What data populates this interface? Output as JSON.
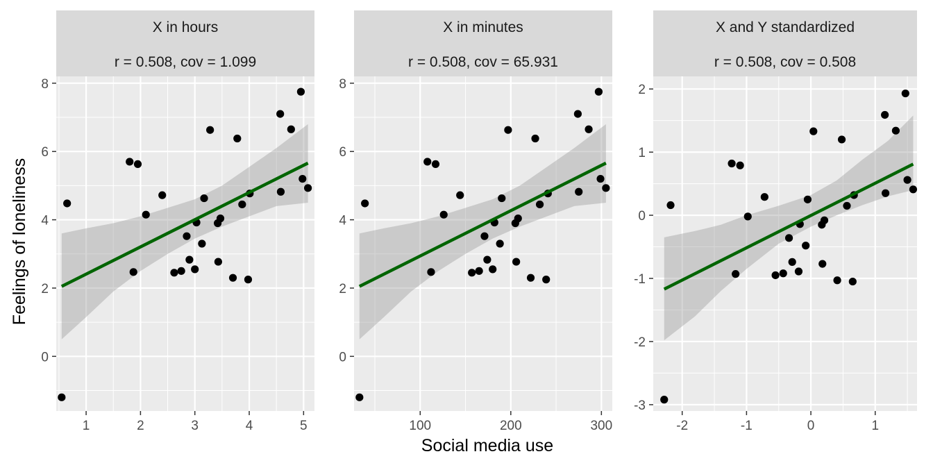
{
  "figure": {
    "xlabel": "Social media use",
    "ylabel": "Feelings of loneliness"
  },
  "colors": {
    "panel_bg": "#ebebeb",
    "strip_bg": "#d9d9d9",
    "grid": "#ffffff",
    "point": "#000000",
    "line": "#006400",
    "band": "#999999",
    "tick_text": "#4d4d4d"
  },
  "chart_data": [
    {
      "type": "scatter",
      "title": "X in hours",
      "subtitle": "r = 0.508, cov = 1.099",
      "xlim": [
        0.45,
        5.2
      ],
      "ylim": [
        -1.6,
        8.2
      ],
      "xticks": [
        1,
        2,
        3,
        4,
        5
      ],
      "xtick_labels": [
        "1",
        "2",
        "3",
        "4",
        "5"
      ],
      "yticks": [
        0,
        2,
        4,
        6,
        8
      ],
      "ytick_labels": [
        "0",
        "2",
        "4",
        "6",
        "8"
      ],
      "points": [
        [
          0.55,
          -1.2
        ],
        [
          0.65,
          4.48
        ],
        [
          1.8,
          5.7
        ],
        [
          1.87,
          2.47
        ],
        [
          1.95,
          5.63
        ],
        [
          2.1,
          4.15
        ],
        [
          2.4,
          4.72
        ],
        [
          2.62,
          2.45
        ],
        [
          2.75,
          2.5
        ],
        [
          2.85,
          3.52
        ],
        [
          2.9,
          2.83
        ],
        [
          3.0,
          2.55
        ],
        [
          3.03,
          3.92
        ],
        [
          3.13,
          3.3
        ],
        [
          3.17,
          4.63
        ],
        [
          3.28,
          6.63
        ],
        [
          3.42,
          3.9
        ],
        [
          3.43,
          2.77
        ],
        [
          3.47,
          4.04
        ],
        [
          3.7,
          2.3
        ],
        [
          3.78,
          6.38
        ],
        [
          3.87,
          4.45
        ],
        [
          3.98,
          2.25
        ],
        [
          4.01,
          4.77
        ],
        [
          4.57,
          7.1
        ],
        [
          4.58,
          4.82
        ],
        [
          4.77,
          6.65
        ],
        [
          4.95,
          7.75
        ],
        [
          4.98,
          5.2
        ],
        [
          5.08,
          4.93
        ]
      ],
      "fit": {
        "x": [
          0.55,
          5.08
        ],
        "y": [
          2.05,
          5.66
        ]
      },
      "band": [
        [
          0.55,
          0.5,
          3.6
        ],
        [
          1.0,
          1.15,
          3.75
        ],
        [
          1.5,
          1.9,
          3.9
        ],
        [
          2.0,
          2.5,
          4.1
        ],
        [
          2.5,
          3.0,
          4.35
        ],
        [
          3.0,
          3.45,
          4.6
        ],
        [
          3.5,
          3.8,
          5.0
        ],
        [
          4.0,
          4.1,
          5.55
        ],
        [
          4.5,
          4.4,
          6.1
        ],
        [
          5.08,
          4.5,
          6.8
        ]
      ]
    },
    {
      "type": "scatter",
      "title": "X in minutes",
      "subtitle": "r = 0.508, cov = 65.931",
      "xlim": [
        27,
        312
      ],
      "ylim": [
        -1.6,
        8.2
      ],
      "xticks": [
        100,
        200,
        300
      ],
      "xtick_labels": [
        "100",
        "200",
        "300"
      ],
      "yticks": [
        0,
        2,
        4,
        6,
        8
      ],
      "ytick_labels": [
        "0",
        "2",
        "4",
        "6",
        "8"
      ],
      "points": [
        [
          33,
          -1.2
        ],
        [
          39,
          4.48
        ],
        [
          108,
          5.7
        ],
        [
          112,
          2.47
        ],
        [
          117,
          5.63
        ],
        [
          126,
          4.15
        ],
        [
          144,
          4.72
        ],
        [
          157,
          2.45
        ],
        [
          165,
          2.5
        ],
        [
          171,
          3.52
        ],
        [
          174,
          2.83
        ],
        [
          180,
          2.55
        ],
        [
          182,
          3.92
        ],
        [
          188,
          3.3
        ],
        [
          190,
          4.63
        ],
        [
          197,
          6.63
        ],
        [
          205,
          3.9
        ],
        [
          206,
          2.77
        ],
        [
          208,
          4.04
        ],
        [
          222,
          2.3
        ],
        [
          227,
          6.38
        ],
        [
          232,
          4.45
        ],
        [
          239,
          2.25
        ],
        [
          241,
          4.77
        ],
        [
          274,
          7.1
        ],
        [
          275,
          4.82
        ],
        [
          286,
          6.65
        ],
        [
          297,
          7.75
        ],
        [
          299,
          5.2
        ],
        [
          305,
          4.93
        ]
      ],
      "fit": {
        "x": [
          33,
          305
        ],
        "y": [
          2.05,
          5.66
        ]
      },
      "band": [
        [
          33,
          0.5,
          3.6
        ],
        [
          60,
          1.15,
          3.75
        ],
        [
          90,
          1.9,
          3.9
        ],
        [
          120,
          2.5,
          4.1
        ],
        [
          150,
          3.0,
          4.35
        ],
        [
          180,
          3.45,
          4.6
        ],
        [
          210,
          3.8,
          5.0
        ],
        [
          240,
          4.1,
          5.55
        ],
        [
          270,
          4.4,
          6.1
        ],
        [
          305,
          4.5,
          6.8
        ]
      ]
    },
    {
      "type": "scatter",
      "title": "X and Y standardized",
      "subtitle": "r = 0.508, cov = 0.508",
      "xlim": [
        -2.45,
        1.65
      ],
      "ylim": [
        -3.1,
        2.2
      ],
      "xticks": [
        -2,
        -1,
        0,
        1
      ],
      "xtick_labels": [
        "-2",
        "-1",
        "0",
        "1"
      ],
      "yticks": [
        -3,
        -2,
        -1,
        0,
        1,
        2
      ],
      "ytick_labels": [
        "-3",
        "-2",
        "-1",
        "0",
        "1",
        "2"
      ],
      "points": [
        [
          -2.28,
          -2.92
        ],
        [
          -2.18,
          0.16
        ],
        [
          -1.23,
          0.82
        ],
        [
          -1.17,
          -0.93
        ],
        [
          -1.1,
          0.79
        ],
        [
          -0.98,
          -0.02
        ],
        [
          -0.72,
          0.29
        ],
        [
          -0.55,
          -0.95
        ],
        [
          -0.43,
          -0.92
        ],
        [
          -0.34,
          -0.36
        ],
        [
          -0.29,
          -0.74
        ],
        [
          -0.19,
          -0.89
        ],
        [
          -0.17,
          -0.14
        ],
        [
          -0.08,
          -0.48
        ],
        [
          -0.05,
          0.25
        ],
        [
          0.04,
          1.33
        ],
        [
          0.17,
          -0.15
        ],
        [
          0.18,
          -0.77
        ],
        [
          0.21,
          -0.08
        ],
        [
          0.41,
          -1.03
        ],
        [
          0.48,
          1.2
        ],
        [
          0.56,
          0.15
        ],
        [
          0.65,
          -1.05
        ],
        [
          0.67,
          0.32
        ],
        [
          1.15,
          1.59
        ],
        [
          1.16,
          0.35
        ],
        [
          1.32,
          1.34
        ],
        [
          1.47,
          1.93
        ],
        [
          1.5,
          0.56
        ],
        [
          1.59,
          0.41
        ]
      ],
      "fit": {
        "x": [
          -2.28,
          1.59
        ],
        "y": [
          -1.17,
          0.81
        ]
      },
      "band": [
        [
          -2.28,
          -1.98,
          -0.35
        ],
        [
          -1.8,
          -1.6,
          -0.25
        ],
        [
          -1.4,
          -1.2,
          -0.15
        ],
        [
          -1.0,
          -0.85,
          0.0
        ],
        [
          -0.5,
          -0.45,
          0.15
        ],
        [
          0.0,
          -0.18,
          0.32
        ],
        [
          0.4,
          0.0,
          0.55
        ],
        [
          0.8,
          0.16,
          0.88
        ],
        [
          1.2,
          0.3,
          1.18
        ],
        [
          1.59,
          0.4,
          1.58
        ]
      ]
    }
  ]
}
